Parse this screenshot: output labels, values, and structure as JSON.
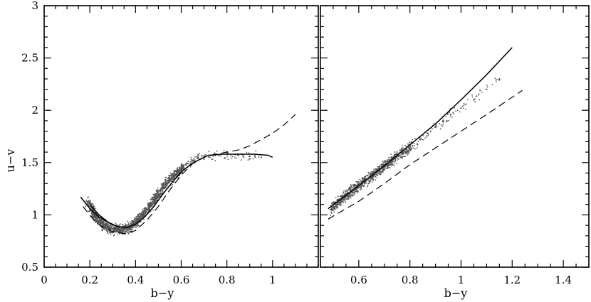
{
  "chart_data": [
    {
      "type": "scatter",
      "panel": "left",
      "xlabel": "b−y",
      "ylabel": "u−v",
      "xlim": [
        0,
        1.2
      ],
      "ylim": [
        0.5,
        3
      ],
      "x_ticks": [
        "0",
        "0.2",
        "0.4",
        "0.6",
        "0.8",
        "1"
      ],
      "y_ticks": [
        "0.5",
        "1",
        "1.5",
        "2",
        "2.5",
        "3"
      ],
      "grid": false,
      "series": [
        {
          "style": "dots",
          "x": [
            0.19,
            0.21,
            0.22,
            0.23,
            0.25,
            0.27,
            0.29,
            0.31,
            0.33,
            0.35,
            0.37,
            0.39,
            0.41,
            0.43,
            0.45,
            0.47,
            0.49,
            0.51,
            0.53,
            0.55,
            0.57,
            0.59,
            0.61,
            0.63,
            0.65,
            0.67,
            0.7,
            0.75,
            0.8,
            0.85,
            0.9,
            0.95
          ],
          "y": [
            1.12,
            1.05,
            1.0,
            0.97,
            0.92,
            0.89,
            0.87,
            0.86,
            0.86,
            0.86,
            0.88,
            0.91,
            0.95,
            1.0,
            1.05,
            1.11,
            1.17,
            1.23,
            1.29,
            1.34,
            1.38,
            1.42,
            1.46,
            1.49,
            1.52,
            1.54,
            1.56,
            1.57,
            1.58,
            1.57,
            1.56,
            1.55
          ]
        },
        {
          "style": "solid",
          "x": [
            0.2,
            0.24,
            0.28,
            0.32,
            0.36,
            0.4,
            0.44,
            0.48,
            0.52,
            0.56,
            0.6,
            0.64,
            0.68,
            0.72,
            0.78,
            0.85,
            0.92,
            0.98,
            1.0
          ],
          "y": [
            1.1,
            1.0,
            0.93,
            0.89,
            0.88,
            0.91,
            0.98,
            1.08,
            1.2,
            1.31,
            1.41,
            1.48,
            1.53,
            1.57,
            1.58,
            1.58,
            1.58,
            1.57,
            1.55
          ]
        },
        {
          "style": "dashed",
          "x": [
            0.17,
            0.21,
            0.25,
            0.3,
            0.35,
            0.4,
            0.45,
            0.5,
            0.55,
            0.6,
            0.65,
            0.7,
            0.75,
            0.8,
            0.85,
            0.9,
            0.95,
            1.0,
            1.05,
            1.1
          ],
          "y": [
            1.08,
            0.97,
            0.89,
            0.84,
            0.82,
            0.85,
            0.95,
            1.08,
            1.24,
            1.38,
            1.49,
            1.55,
            1.58,
            1.6,
            1.62,
            1.66,
            1.72,
            1.78,
            1.86,
            1.96
          ]
        },
        {
          "style": "solid",
          "x": [
            0.16,
            0.2,
            0.24,
            0.28
          ],
          "y": [
            1.17,
            1.06,
            0.98,
            0.93
          ]
        }
      ]
    },
    {
      "type": "scatter",
      "panel": "right",
      "xlabel": "b−y",
      "xlim": [
        0.45,
        1.5
      ],
      "ylim": [
        0.5,
        3
      ],
      "x_ticks": [
        "0.6",
        "0.8",
        "1",
        "1.2",
        "1.4"
      ],
      "grid": false,
      "series": [
        {
          "style": "dots",
          "x": [
            0.49,
            0.51,
            0.53,
            0.55,
            0.57,
            0.59,
            0.61,
            0.63,
            0.65,
            0.67,
            0.69,
            0.71,
            0.73,
            0.75,
            0.78,
            0.81,
            0.84,
            0.87,
            0.9,
            0.93,
            0.96,
            1.0,
            1.05,
            1.1,
            1.15
          ],
          "y": [
            1.05,
            1.1,
            1.14,
            1.18,
            1.22,
            1.26,
            1.3,
            1.33,
            1.37,
            1.41,
            1.45,
            1.48,
            1.52,
            1.56,
            1.61,
            1.66,
            1.72,
            1.78,
            1.84,
            1.9,
            1.96,
            2.02,
            2.1,
            2.2,
            2.3
          ]
        },
        {
          "style": "solid",
          "x": [
            0.48,
            0.6,
            0.7,
            0.8,
            0.9,
            1.0,
            1.1,
            1.2
          ],
          "y": [
            1.06,
            1.28,
            1.47,
            1.67,
            1.87,
            2.1,
            2.34,
            2.6
          ]
        },
        {
          "style": "dashed",
          "x": [
            0.48,
            0.6,
            0.7,
            0.8,
            0.9,
            1.0,
            1.1,
            1.24
          ],
          "y": [
            0.96,
            1.13,
            1.3,
            1.48,
            1.64,
            1.8,
            1.96,
            2.19
          ]
        }
      ]
    }
  ]
}
